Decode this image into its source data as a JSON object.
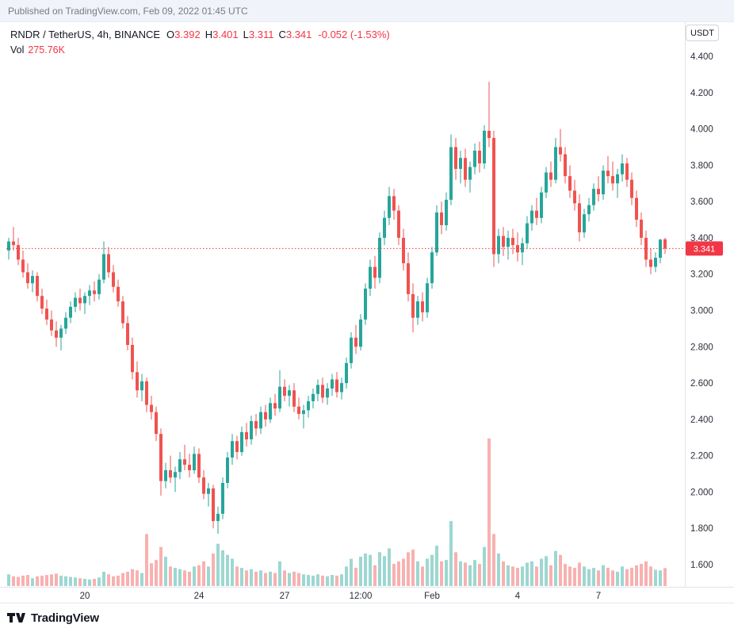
{
  "published_bar": {
    "text": "Published on TradingView.com, Feb 09, 2022 01:45 UTC"
  },
  "legend": {
    "title": "RNDR / TetherUS, 4h, BINANCE",
    "ohlc": [
      {
        "label": "O",
        "value": "3.392"
      },
      {
        "label": "H",
        "value": "3.401"
      },
      {
        "label": "L",
        "value": "3.311"
      },
      {
        "label": "C",
        "value": "3.341"
      }
    ],
    "change": "-0.052 (-1.53%)",
    "vol_label": "Vol",
    "vol_value": "275.76K"
  },
  "axis": {
    "currency_button": "USDT",
    "price_tag": "3.341"
  },
  "footer": {
    "brand": "TradingView"
  },
  "colors": {
    "up": "#26a69a",
    "down": "#ef5350",
    "vol_up": "rgba(38,166,154,0.45)",
    "vol_down": "rgba(239,83,80,0.45)",
    "price_line": "#f23645",
    "axis_line": "#e0e3eb",
    "axis_text": "#2a2e39"
  },
  "chart_data": {
    "type": "candlestick",
    "symbol": "RNDR / TetherUS",
    "interval": "4h",
    "exchange": "BINANCE",
    "last_open": 3.392,
    "last_high": 3.401,
    "last_low": 3.311,
    "last_close": 3.341,
    "change": -0.052,
    "change_pct": -1.53,
    "last_volume_k": 275.76,
    "price_line_value": 3.341,
    "y_axis_range": [
      1.6,
      4.4
    ],
    "y_ticks": [
      "4.400",
      "4.200",
      "4.000",
      "3.800",
      "3.600",
      "3.400",
      "3.200",
      "3.000",
      "2.800",
      "2.600",
      "2.400",
      "2.200",
      "2.000",
      "1.800",
      "1.600"
    ],
    "x_labels": [
      {
        "label": "20",
        "index": 16
      },
      {
        "label": "24",
        "index": 40
      },
      {
        "label": "27",
        "index": 58
      },
      {
        "label": "12:00",
        "index": 74
      },
      {
        "label": "Feb",
        "index": 89
      },
      {
        "label": "4",
        "index": 107
      },
      {
        "label": "7",
        "index": 124
      }
    ],
    "volume_unit": "K",
    "candles_format": [
      "open",
      "high",
      "low",
      "close",
      "volume_k"
    ],
    "candles": [
      [
        3.33,
        3.4,
        3.28,
        3.38,
        180
      ],
      [
        3.38,
        3.46,
        3.33,
        3.36,
        150
      ],
      [
        3.36,
        3.4,
        3.25,
        3.28,
        140
      ],
      [
        3.28,
        3.33,
        3.18,
        3.21,
        160
      ],
      [
        3.21,
        3.26,
        3.12,
        3.15,
        170
      ],
      [
        3.15,
        3.22,
        3.1,
        3.19,
        120
      ],
      [
        3.19,
        3.21,
        3.05,
        3.08,
        150
      ],
      [
        3.08,
        3.12,
        2.98,
        3.01,
        160
      ],
      [
        3.01,
        3.06,
        2.92,
        2.95,
        170
      ],
      [
        2.95,
        3.0,
        2.86,
        2.89,
        180
      ],
      [
        2.89,
        2.94,
        2.8,
        2.85,
        190
      ],
      [
        2.85,
        2.92,
        2.78,
        2.9,
        160
      ],
      [
        2.9,
        2.99,
        2.87,
        2.96,
        150
      ],
      [
        2.96,
        3.05,
        2.93,
        3.02,
        140
      ],
      [
        3.02,
        3.1,
        2.99,
        3.07,
        130
      ],
      [
        3.07,
        3.12,
        3.0,
        3.04,
        120
      ],
      [
        3.04,
        3.1,
        2.98,
        3.08,
        110
      ],
      [
        3.08,
        3.14,
        3.03,
        3.11,
        100
      ],
      [
        3.11,
        3.16,
        3.05,
        3.09,
        110
      ],
      [
        3.09,
        3.2,
        3.06,
        3.17,
        130
      ],
      [
        3.17,
        3.38,
        3.15,
        3.31,
        220
      ],
      [
        3.31,
        3.35,
        3.18,
        3.21,
        180
      ],
      [
        3.21,
        3.25,
        3.1,
        3.13,
        150
      ],
      [
        3.13,
        3.17,
        3.02,
        3.05,
        160
      ],
      [
        3.05,
        3.08,
        2.9,
        2.93,
        200
      ],
      [
        2.93,
        2.97,
        2.78,
        2.81,
        220
      ],
      [
        2.81,
        2.85,
        2.62,
        2.66,
        260
      ],
      [
        2.66,
        2.72,
        2.52,
        2.56,
        240
      ],
      [
        2.56,
        2.65,
        2.5,
        2.61,
        200
      ],
      [
        2.61,
        2.63,
        2.44,
        2.48,
        800
      ],
      [
        2.48,
        2.53,
        2.4,
        2.44,
        350
      ],
      [
        2.44,
        2.47,
        2.28,
        2.32,
        400
      ],
      [
        2.32,
        2.35,
        1.98,
        2.06,
        600
      ],
      [
        2.06,
        2.16,
        2.02,
        2.12,
        450
      ],
      [
        2.12,
        2.2,
        2.05,
        2.08,
        300
      ],
      [
        2.08,
        2.14,
        2.0,
        2.11,
        280
      ],
      [
        2.11,
        2.22,
        2.07,
        2.18,
        260
      ],
      [
        2.18,
        2.26,
        2.12,
        2.15,
        240
      ],
      [
        2.15,
        2.21,
        2.08,
        2.12,
        220
      ],
      [
        2.12,
        2.25,
        2.1,
        2.21,
        300
      ],
      [
        2.21,
        2.24,
        2.05,
        2.08,
        320
      ],
      [
        2.08,
        2.12,
        1.96,
        1.99,
        380
      ],
      [
        1.99,
        2.05,
        1.92,
        2.02,
        300
      ],
      [
        2.02,
        2.04,
        1.8,
        1.84,
        500
      ],
      [
        1.84,
        1.92,
        1.77,
        1.88,
        650
      ],
      [
        1.88,
        2.08,
        1.85,
        2.05,
        550
      ],
      [
        2.05,
        2.22,
        2.02,
        2.19,
        480
      ],
      [
        2.19,
        2.32,
        2.15,
        2.28,
        420
      ],
      [
        2.28,
        2.31,
        2.18,
        2.22,
        300
      ],
      [
        2.22,
        2.36,
        2.2,
        2.33,
        280
      ],
      [
        2.33,
        2.38,
        2.25,
        2.29,
        240
      ],
      [
        2.29,
        2.42,
        2.26,
        2.39,
        260
      ],
      [
        2.39,
        2.43,
        2.31,
        2.35,
        220
      ],
      [
        2.35,
        2.47,
        2.32,
        2.44,
        240
      ],
      [
        2.44,
        2.48,
        2.36,
        2.4,
        200
      ],
      [
        2.4,
        2.52,
        2.38,
        2.49,
        220
      ],
      [
        2.49,
        2.54,
        2.42,
        2.46,
        200
      ],
      [
        2.46,
        2.67,
        2.44,
        2.58,
        380
      ],
      [
        2.58,
        2.62,
        2.5,
        2.53,
        240
      ],
      [
        2.53,
        2.59,
        2.47,
        2.56,
        200
      ],
      [
        2.56,
        2.6,
        2.44,
        2.47,
        220
      ],
      [
        2.47,
        2.52,
        2.4,
        2.43,
        200
      ],
      [
        2.43,
        2.48,
        2.35,
        2.45,
        180
      ],
      [
        2.45,
        2.53,
        2.41,
        2.5,
        170
      ],
      [
        2.5,
        2.57,
        2.46,
        2.54,
        160
      ],
      [
        2.54,
        2.62,
        2.5,
        2.59,
        180
      ],
      [
        2.59,
        2.63,
        2.49,
        2.52,
        160
      ],
      [
        2.52,
        2.6,
        2.48,
        2.57,
        150
      ],
      [
        2.57,
        2.65,
        2.53,
        2.62,
        170
      ],
      [
        2.62,
        2.66,
        2.52,
        2.55,
        160
      ],
      [
        2.55,
        2.63,
        2.51,
        2.6,
        180
      ],
      [
        2.6,
        2.74,
        2.57,
        2.71,
        300
      ],
      [
        2.71,
        2.88,
        2.68,
        2.85,
        420
      ],
      [
        2.85,
        2.92,
        2.76,
        2.8,
        280
      ],
      [
        2.8,
        2.98,
        2.78,
        2.95,
        450
      ],
      [
        2.95,
        3.15,
        2.92,
        3.12,
        500
      ],
      [
        3.12,
        3.28,
        3.08,
        3.24,
        480
      ],
      [
        3.24,
        3.3,
        3.12,
        3.18,
        320
      ],
      [
        3.18,
        3.43,
        3.15,
        3.4,
        520
      ],
      [
        3.4,
        3.55,
        3.36,
        3.51,
        460
      ],
      [
        3.51,
        3.68,
        3.47,
        3.63,
        580
      ],
      [
        3.63,
        3.67,
        3.5,
        3.55,
        340
      ],
      [
        3.55,
        3.58,
        3.36,
        3.4,
        380
      ],
      [
        3.4,
        3.45,
        3.22,
        3.26,
        420
      ],
      [
        3.26,
        3.32,
        3.05,
        3.09,
        520
      ],
      [
        3.09,
        3.15,
        2.88,
        2.96,
        560
      ],
      [
        2.96,
        3.08,
        2.92,
        3.05,
        380
      ],
      [
        3.05,
        3.1,
        2.94,
        2.99,
        300
      ],
      [
        2.99,
        3.18,
        2.96,
        3.15,
        420
      ],
      [
        3.15,
        3.35,
        3.12,
        3.32,
        480
      ],
      [
        3.32,
        3.58,
        3.3,
        3.54,
        620
      ],
      [
        3.54,
        3.6,
        3.42,
        3.47,
        380
      ],
      [
        3.47,
        3.65,
        3.44,
        3.61,
        400
      ],
      [
        3.61,
        3.97,
        3.58,
        3.9,
        1000
      ],
      [
        3.9,
        3.95,
        3.72,
        3.78,
        520
      ],
      [
        3.78,
        3.88,
        3.7,
        3.84,
        380
      ],
      [
        3.84,
        3.89,
        3.68,
        3.72,
        360
      ],
      [
        3.72,
        3.82,
        3.65,
        3.79,
        320
      ],
      [
        3.79,
        3.92,
        3.75,
        3.88,
        400
      ],
      [
        3.88,
        3.93,
        3.76,
        3.81,
        340
      ],
      [
        3.81,
        4.02,
        3.78,
        3.99,
        600
      ],
      [
        3.99,
        4.26,
        3.9,
        3.95,
        2270
      ],
      [
        3.95,
        3.99,
        3.24,
        3.31,
        800
      ],
      [
        3.31,
        3.45,
        3.26,
        3.41,
        500
      ],
      [
        3.41,
        3.46,
        3.3,
        3.35,
        380
      ],
      [
        3.35,
        3.44,
        3.28,
        3.4,
        320
      ],
      [
        3.4,
        3.45,
        3.31,
        3.36,
        300
      ],
      [
        3.36,
        3.43,
        3.27,
        3.32,
        280
      ],
      [
        3.32,
        3.4,
        3.25,
        3.37,
        300
      ],
      [
        3.37,
        3.52,
        3.34,
        3.48,
        360
      ],
      [
        3.48,
        3.58,
        3.44,
        3.55,
        380
      ],
      [
        3.55,
        3.62,
        3.47,
        3.51,
        300
      ],
      [
        3.51,
        3.68,
        3.48,
        3.65,
        420
      ],
      [
        3.65,
        3.79,
        3.62,
        3.76,
        460
      ],
      [
        3.76,
        3.82,
        3.68,
        3.72,
        320
      ],
      [
        3.72,
        3.95,
        3.7,
        3.9,
        540
      ],
      [
        3.9,
        4.0,
        3.82,
        3.86,
        480
      ],
      [
        3.86,
        3.9,
        3.7,
        3.74,
        340
      ],
      [
        3.74,
        3.8,
        3.62,
        3.66,
        300
      ],
      [
        3.66,
        3.72,
        3.55,
        3.59,
        280
      ],
      [
        3.59,
        3.64,
        3.38,
        3.43,
        360
      ],
      [
        3.43,
        3.56,
        3.4,
        3.53,
        300
      ],
      [
        3.53,
        3.62,
        3.49,
        3.58,
        260
      ],
      [
        3.58,
        3.7,
        3.55,
        3.67,
        280
      ],
      [
        3.67,
        3.74,
        3.6,
        3.64,
        240
      ],
      [
        3.64,
        3.8,
        3.61,
        3.77,
        320
      ],
      [
        3.77,
        3.85,
        3.7,
        3.74,
        280
      ],
      [
        3.74,
        3.82,
        3.66,
        3.7,
        240
      ],
      [
        3.7,
        3.78,
        3.62,
        3.75,
        220
      ],
      [
        3.75,
        3.86,
        3.71,
        3.81,
        300
      ],
      [
        3.81,
        3.84,
        3.68,
        3.72,
        260
      ],
      [
        3.72,
        3.76,
        3.58,
        3.62,
        280
      ],
      [
        3.62,
        3.66,
        3.46,
        3.5,
        320
      ],
      [
        3.5,
        3.54,
        3.36,
        3.4,
        340
      ],
      [
        3.4,
        3.44,
        3.24,
        3.28,
        380
      ],
      [
        3.28,
        3.34,
        3.2,
        3.24,
        300
      ],
      [
        3.24,
        3.32,
        3.21,
        3.29,
        250
      ],
      [
        3.29,
        3.395,
        3.26,
        3.39,
        240
      ],
      [
        3.392,
        3.401,
        3.311,
        3.341,
        275.76
      ]
    ]
  }
}
